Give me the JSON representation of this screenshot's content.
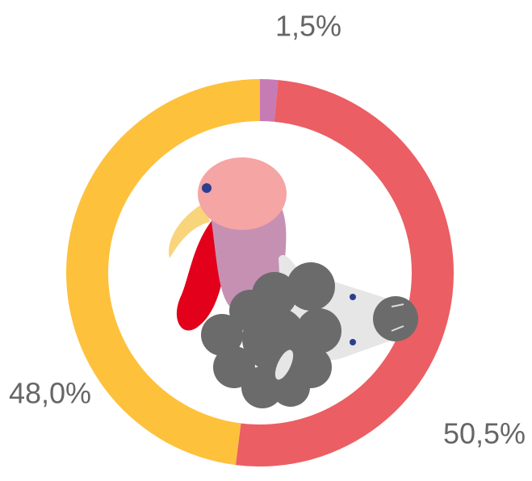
{
  "chart_data": {
    "type": "donut",
    "categories": [
      null,
      null,
      null
    ],
    "values": [
      1.5,
      50.5,
      48.0
    ],
    "value_labels": [
      "1,5%",
      "50,5%",
      "48,0%"
    ],
    "colors": [
      "#c77bb5",
      "#eb5e63",
      "#fdc13c"
    ]
  }
}
